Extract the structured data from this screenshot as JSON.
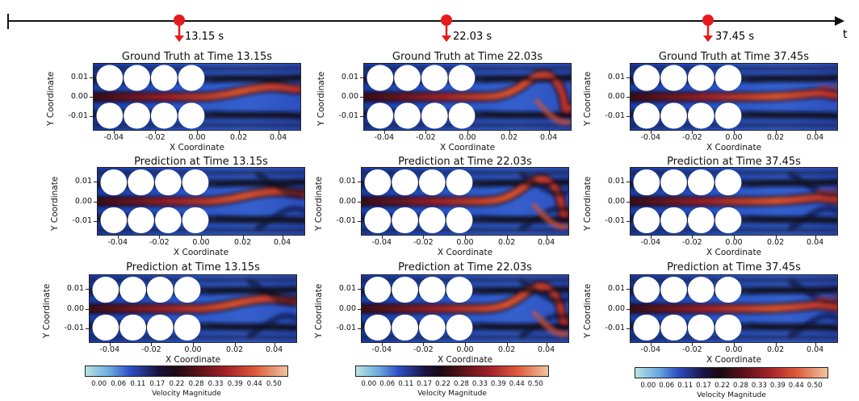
{
  "timeline": {
    "axis_label": "t",
    "markers": [
      {
        "label": "13.15 s"
      },
      {
        "label": "22.03 s"
      },
      {
        "label": "37.45 s"
      }
    ],
    "marker_color": "#e51b1b"
  },
  "panels": [
    {
      "title": "Ground Truth at Time 13.15s",
      "xlabel": "X Coordinate",
      "ylabel": "Y Coordinate"
    },
    {
      "title": "Ground Truth at Time 22.03s",
      "xlabel": "X Coordinate",
      "ylabel": "Y Coordinate"
    },
    {
      "title": "Ground Truth at Time 37.45s",
      "xlabel": "X Coordinate",
      "ylabel": "Y Coordinate"
    },
    {
      "title": "Prediction at Time 13.15s",
      "xlabel": "X Coordinate",
      "ylabel": "Y Coordinate"
    },
    {
      "title": "Prediction at Time 22.03s",
      "xlabel": "X Coordinate",
      "ylabel": "Y Coordinate"
    },
    {
      "title": "Prediction at Time 37.45s",
      "xlabel": "X Coordinate",
      "ylabel": "Y Coordinate"
    },
    {
      "title": "Prediction at Time 13.15s",
      "xlabel": "X Coordinate",
      "ylabel": "Y Coordinate"
    },
    {
      "title": "Prediction at Time 22.03s",
      "xlabel": "X Coordinate",
      "ylabel": "Y Coordinate"
    },
    {
      "title": "Prediction at Time 37.45s",
      "xlabel": "X Coordinate",
      "ylabel": "Y Coordinate"
    }
  ],
  "axes": {
    "x_ticks": [
      "-0.04",
      "-0.02",
      "0.00",
      "0.02",
      "0.04"
    ],
    "y_ticks_row1": [
      "0.01",
      "0.00",
      "-0.01"
    ],
    "y_ticks_row2": [
      "0.01",
      "0.00",
      "-0.01"
    ],
    "y_ticks_row3": [
      "0.01",
      "0.00",
      "-0.01"
    ]
  },
  "colorbar": {
    "label": "Velocity Magnitude",
    "ticks": [
      "0.00",
      "0.06",
      "0.11",
      "0.17",
      "0.22",
      "0.28",
      "0.33",
      "0.39",
      "0.44",
      "0.50"
    ]
  }
}
